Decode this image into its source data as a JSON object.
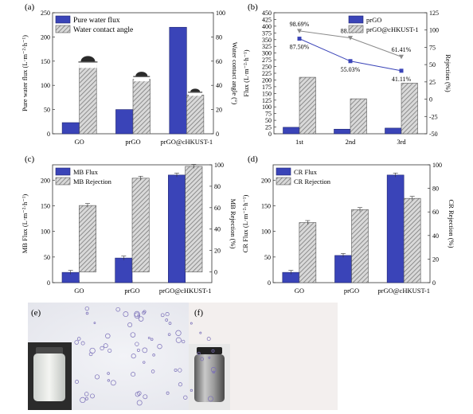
{
  "panels": {
    "a": {
      "label": "(a)"
    },
    "b": {
      "label": "(b)"
    },
    "c": {
      "label": "(c)"
    },
    "d": {
      "label": "(d)"
    },
    "e": {
      "label": "(e)"
    },
    "f": {
      "label": "(f)"
    }
  },
  "colors": {
    "blue": "#3a44b8",
    "hatch": "#b4b4b4",
    "line_blue": "#3a44b8",
    "line_gray": "#8a8a8a"
  },
  "chart_data": [
    {
      "id": "a",
      "type": "bar",
      "categories": [
        "GO",
        "prGO",
        "prGO@cHKUST-1"
      ],
      "series": [
        {
          "name": "Pure water flux",
          "axis": "left",
          "values": [
            23,
            50,
            220
          ]
        },
        {
          "name": "Water contact angle",
          "axis": "right",
          "values": [
            57,
            45,
            32
          ]
        }
      ],
      "ylabel": "Pure water flux (L·m⁻²·h⁻¹)",
      "y2label": "Water contact angle (°)",
      "ylim": [
        0,
        250
      ],
      "y2lim": [
        0,
        100
      ],
      "yticks": [
        0,
        50,
        100,
        150,
        200,
        250
      ],
      "y2ticks": [
        0,
        20,
        40,
        60,
        80,
        100
      ],
      "legend": "top-left"
    },
    {
      "id": "b",
      "type": "bar",
      "categories": [
        "1st",
        "2nd",
        "3rd"
      ],
      "series": [
        {
          "name": "prGO",
          "axis": "left",
          "values": [
            24,
            17,
            21
          ],
          "line_values": [
            87.5,
            55.03,
            41.11
          ]
        },
        {
          "name": "prGO@cHKUST-1",
          "axis": "left",
          "values": [
            210,
            130,
            188
          ],
          "line_values": [
            98.69,
            88.59,
            61.41
          ]
        }
      ],
      "annotations": {
        "prGO": [
          "87.50%",
          "55.03%",
          "41.11%"
        ],
        "prGO@cHKUST-1": [
          "98.69%",
          "88.59%",
          "61.41%"
        ]
      },
      "ylabel": "Flux (L·m⁻²·h⁻¹)",
      "y2label": "Rejection (%)",
      "ylim": [
        0,
        450
      ],
      "y2lim": [
        -50,
        125
      ],
      "yticks": [
        0,
        25,
        50,
        75,
        100,
        125,
        150,
        175,
        200,
        225,
        250,
        275,
        300,
        325,
        350,
        375,
        400,
        425,
        450
      ],
      "y2ticks": [
        -50,
        -25,
        0,
        25,
        50,
        75,
        100,
        125
      ],
      "legend": "top-right"
    },
    {
      "id": "c",
      "type": "bar",
      "categories": [
        "GO",
        "prGO",
        "prGO@cHKUST-1"
      ],
      "series": [
        {
          "name": "MB Flux",
          "axis": "left",
          "values": [
            20,
            48,
            210
          ]
        },
        {
          "name": "MB Rejection",
          "axis": "right",
          "values": [
            62,
            87.5,
            98.5
          ]
        }
      ],
      "ylabel": "MB Flux (L·m⁻²·h⁻¹)",
      "y2label": "MB Rejection (%)",
      "ylim": [
        0,
        230
      ],
      "y2lim": [
        -10,
        100
      ],
      "yticks": [
        0,
        50,
        100,
        150,
        200
      ],
      "y2ticks": [
        0,
        20,
        40,
        60,
        80,
        100
      ],
      "legend": "top-left"
    },
    {
      "id": "d",
      "type": "bar",
      "categories": [
        "GO",
        "prGO",
        "prGO@cHKUST-1"
      ],
      "series": [
        {
          "name": "CR Flux",
          "axis": "left",
          "values": [
            20,
            53,
            210
          ]
        },
        {
          "name": "CR Rejection",
          "axis": "right",
          "values": [
            51,
            62,
            71.5
          ]
        }
      ],
      "ylabel": "CR Flux (L·m⁻²·h⁻¹)",
      "y2label": "CR Rejection (%)",
      "ylim": [
        0,
        230
      ],
      "y2lim": [
        0,
        100
      ],
      "yticks": [
        0,
        50,
        100,
        150,
        200
      ],
      "y2ticks": [
        0,
        20,
        40,
        60,
        80,
        100
      ],
      "legend": "top-left"
    }
  ]
}
